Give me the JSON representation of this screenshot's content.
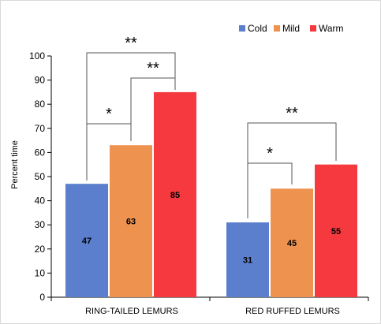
{
  "chart_data": {
    "type": "bar",
    "title": "",
    "xlabel": "",
    "ylabel": "Percent time",
    "ylim": [
      0,
      100
    ],
    "yticks": [
      0,
      10,
      20,
      30,
      40,
      50,
      60,
      70,
      80,
      90,
      100
    ],
    "categories": [
      "RING-TAILED LEMURS",
      "RED RUFFED LEMURS"
    ],
    "series": [
      {
        "name": "Cold",
        "color": "#5b7fcc",
        "values": [
          47,
          31
        ]
      },
      {
        "name": "Mild",
        "color": "#ee924f",
        "values": [
          63,
          45
        ]
      },
      {
        "name": "Warm",
        "color": "#f5393f",
        "values": [
          85,
          55
        ]
      }
    ],
    "data_labels": [
      [
        "47",
        "31"
      ],
      [
        "63",
        "45"
      ],
      [
        "85",
        "55"
      ]
    ],
    "legend_position": "top-right",
    "grid": false,
    "significance": [
      {
        "category": 0,
        "from_series": 0,
        "to_series": 1,
        "label": "*"
      },
      {
        "category": 0,
        "from_series": 1,
        "to_series": 2,
        "label": "**"
      },
      {
        "category": 0,
        "from_series": 0,
        "to_series": 2,
        "label": "**"
      },
      {
        "category": 1,
        "from_series": 0,
        "to_series": 1,
        "label": "*"
      },
      {
        "category": 1,
        "from_series": 0,
        "to_series": 2,
        "label": "**"
      }
    ]
  }
}
